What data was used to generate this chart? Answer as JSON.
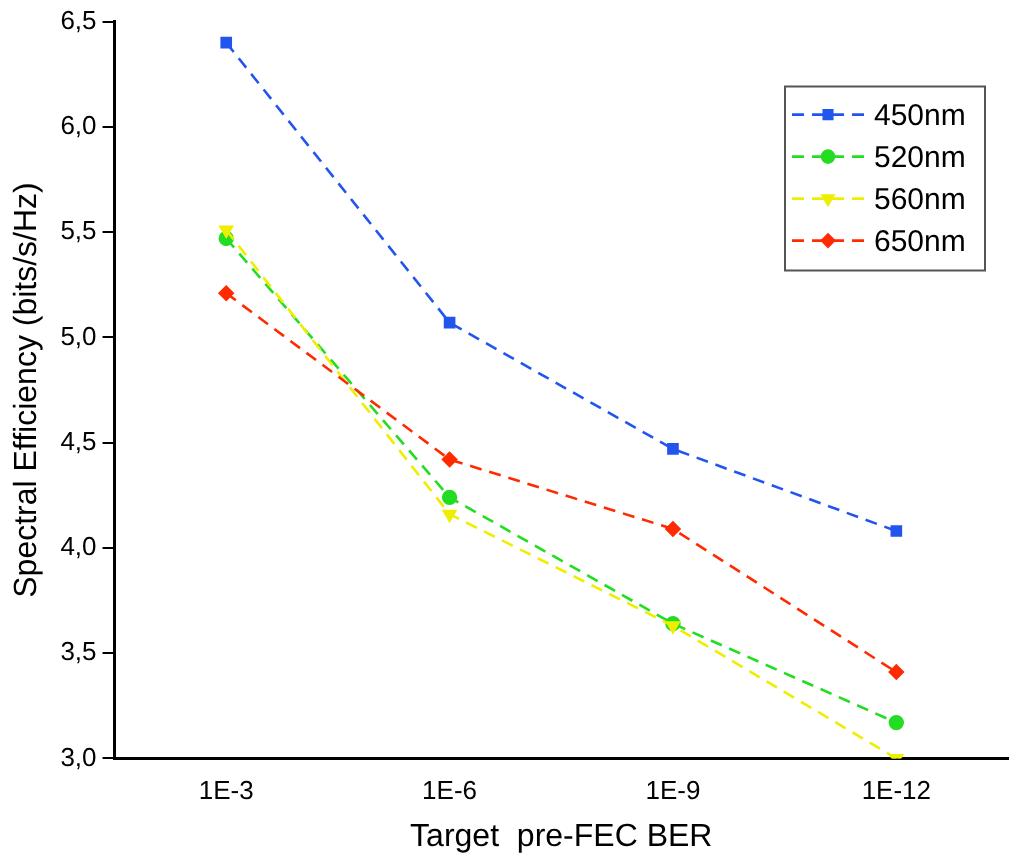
{
  "chart_data": {
    "type": "line",
    "xlabel": "Target  pre-FEC BER",
    "ylabel": "Spectral Efficiency (bits/s/Hz)",
    "categories": [
      "1E-3",
      "1E-6",
      "1E-9",
      "1E-12"
    ],
    "series": [
      {
        "name": "450nm",
        "color": "#2255ee",
        "marker": "square",
        "values": [
          6.4,
          5.07,
          4.47,
          4.08
        ]
      },
      {
        "name": "520nm",
        "color": "#22dd22",
        "marker": "circle",
        "values": [
          5.47,
          4.24,
          3.64,
          3.17
        ]
      },
      {
        "name": "560nm",
        "color": "#eeee00",
        "marker": "triangle",
        "values": [
          5.51,
          4.16,
          3.63,
          3.0
        ]
      },
      {
        "name": "650nm",
        "color": "#ff2a00",
        "marker": "diamond",
        "values": [
          5.21,
          4.42,
          4.09,
          3.41
        ]
      }
    ],
    "ylim": [
      3.0,
      6.5
    ],
    "yticks": [
      {
        "value": 3.0,
        "label": "3,0"
      },
      {
        "value": 3.5,
        "label": "3,5"
      },
      {
        "value": 4.0,
        "label": "4,0"
      },
      {
        "value": 4.5,
        "label": "4,5"
      },
      {
        "value": 5.0,
        "label": "5,0"
      },
      {
        "value": 5.5,
        "label": "5,5"
      },
      {
        "value": 6.0,
        "label": "6,0"
      },
      {
        "value": 6.5,
        "label": "6,5"
      }
    ],
    "grid": false,
    "legend": "top right",
    "line_style": "dashed"
  }
}
